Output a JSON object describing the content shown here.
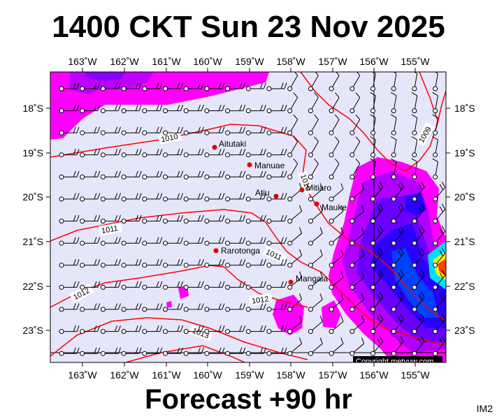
{
  "title": "1400 CKT Sun 23 Nov 2025",
  "footer": "Forecast +90 hr",
  "corner_code": "IM2",
  "copyright": "Copyright metvuw.com",
  "lon_labels": [
    "163˚W",
    "162˚W",
    "161˚W",
    "160˚W",
    "159˚W",
    "158˚W",
    "157˚W",
    "156˚W",
    "155˚W"
  ],
  "lat_labels": [
    "18˚S",
    "19˚S",
    "20˚S",
    "21˚S",
    "22˚S",
    "23˚S"
  ],
  "places": [
    {
      "name": "Aitutaki"
    },
    {
      "name": "Manuae"
    },
    {
      "name": "Mitiaro"
    },
    {
      "name": "Atiu"
    },
    {
      "name": "Mauke"
    },
    {
      "name": "Rarotonga"
    },
    {
      "name": "Mangaia"
    }
  ],
  "isobars": [
    "1010",
    "1010",
    "1011",
    "1011",
    "1012",
    "1012",
    "1013",
    "1009"
  ],
  "colors": {
    "map_background": "#e6e6fa",
    "isobar": "#ff0000",
    "place_marker": "#dd0000",
    "rain_light": "#ff00ff",
    "rain_medium": "#b000ff",
    "rain_heavy": "#3a00ff",
    "rain_intense": "#0030ff"
  }
}
